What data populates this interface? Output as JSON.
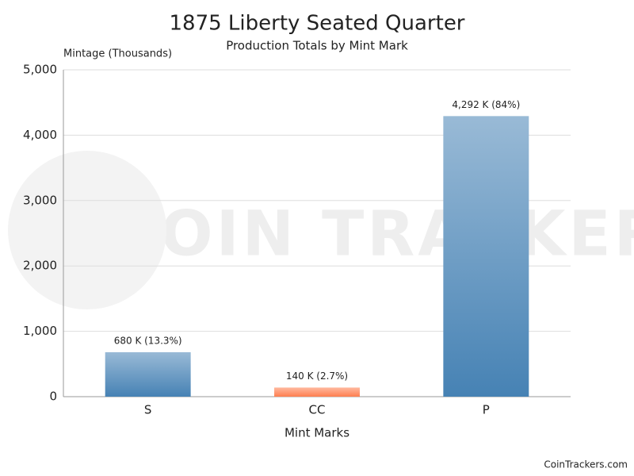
{
  "chart_data": {
    "type": "bar",
    "title": "1875 Liberty Seated Quarter",
    "subtitle": "Production Totals by Mint Mark",
    "y_label": "Mintage (Thousands)",
    "x_label": "Mint Marks",
    "categories": [
      "S",
      "CC",
      "P"
    ],
    "values": [
      680,
      140,
      4292
    ],
    "value_labels": [
      "680 K (13.3%)",
      "140 K (2.7%)",
      "4,292 K (84%)"
    ],
    "colors": [
      "#4682b4",
      "#ff7f50",
      "#4682b4"
    ],
    "ylim": [
      0,
      5000
    ],
    "yticks": [
      0,
      {
        "value": 1000,
        "label": "1,000"
      },
      {
        "value": 2000,
        "label": "2,000"
      },
      {
        "value": 3000,
        "label": "3,000"
      },
      {
        "value": 4000,
        "label": "4,000"
      },
      {
        "value": 5000,
        "label": "5,000"
      }
    ],
    "grid": true,
    "watermark": "COIN TRACKERS",
    "credit": "CoinTrackers.com"
  }
}
